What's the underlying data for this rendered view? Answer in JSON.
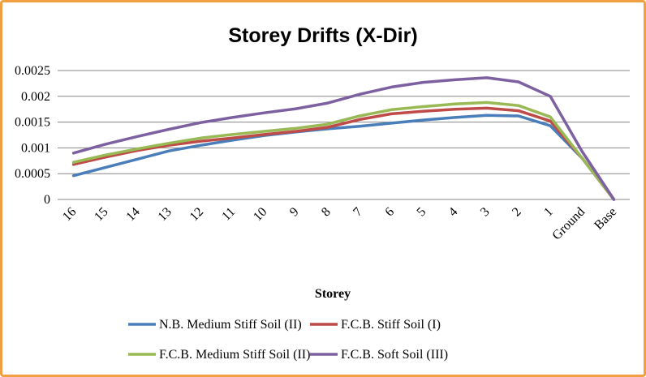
{
  "chart_data": {
    "type": "line",
    "title": "Storey Drifts (X-Dir)",
    "xlabel": "Storey",
    "ylabel": "",
    "categories": [
      "16",
      "15",
      "14",
      "13",
      "12",
      "11",
      "10",
      "9",
      "8",
      "7",
      "6",
      "5",
      "4",
      "3",
      "2",
      "1",
      "Ground",
      "Base"
    ],
    "yticks": [
      "0",
      "0.0005",
      "0.001",
      "0.0015",
      "0.002",
      "0.0025"
    ],
    "ylim": [
      0,
      0.0025
    ],
    "grid": true,
    "legend_position": "bottom",
    "series": [
      {
        "name": "N.B. Medium Stiff Soil (II)",
        "color": "#4A7EBB",
        "values": [
          0.00046,
          0.00062,
          0.00078,
          0.00094,
          0.00105,
          0.00115,
          0.00124,
          0.00131,
          0.00137,
          0.00142,
          0.00148,
          0.00154,
          0.00159,
          0.00163,
          0.00162,
          0.00143,
          0.0008,
          0.0
        ]
      },
      {
        "name": "F.C.B. Stiff Soil (I)",
        "color": "#BE4B48",
        "values": [
          0.00068,
          0.00082,
          0.00095,
          0.00105,
          0.00113,
          0.00119,
          0.00126,
          0.00132,
          0.0014,
          0.00155,
          0.00166,
          0.00171,
          0.00175,
          0.00177,
          0.00172,
          0.00152,
          0.0008,
          0.0
        ]
      },
      {
        "name": "F.C.B. Medium Stiff Soil (II)",
        "color": "#98B954",
        "values": [
          0.00072,
          0.00086,
          0.00098,
          0.00109,
          0.00119,
          0.00126,
          0.00132,
          0.00138,
          0.00146,
          0.00162,
          0.00174,
          0.0018,
          0.00185,
          0.00188,
          0.00182,
          0.0016,
          0.0008,
          0.0
        ]
      },
      {
        "name": "F.C.B. Soft Soil (III)",
        "color": "#7D60A0",
        "values": [
          0.0009,
          0.00107,
          0.00122,
          0.00136,
          0.00149,
          0.00159,
          0.00168,
          0.00176,
          0.00187,
          0.00204,
          0.00218,
          0.00227,
          0.00232,
          0.00236,
          0.00228,
          0.002,
          0.00093,
          0.0
        ]
      }
    ]
  }
}
